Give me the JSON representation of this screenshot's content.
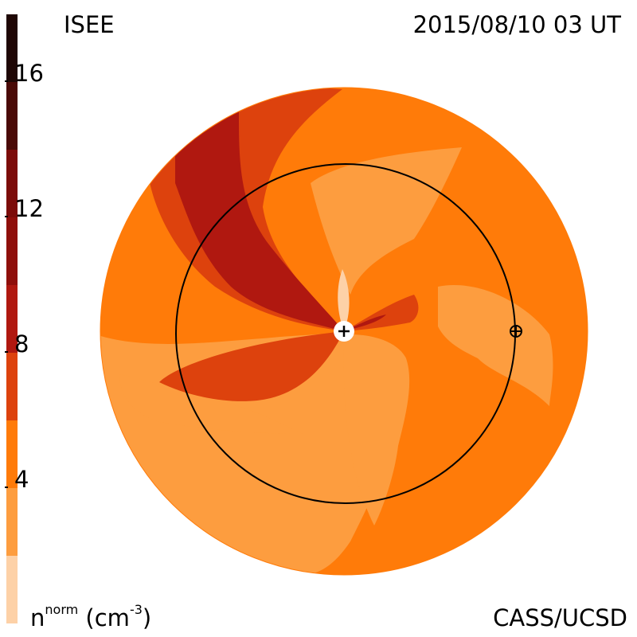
{
  "header": {
    "left_title": "ISEE",
    "right_title": "2015/08/10 03 UT"
  },
  "footer": {
    "units_base": "n",
    "units_sup": "norm",
    "units_tail": "(cm",
    "units_exp": "-3",
    "units_close": ")",
    "credit": "CASS/UCSD"
  },
  "colorbar": {
    "tick_labels": [
      "16",
      "12",
      "8",
      "4"
    ],
    "colors": [
      "#1f0705",
      "#4a0a07",
      "#7c0c0a",
      "#b01810",
      "#dd420d",
      "#ff7b09",
      "#fd9d3f",
      "#fdd1a7"
    ]
  },
  "markers": {
    "sun": "+",
    "earth": "⊕"
  }
}
